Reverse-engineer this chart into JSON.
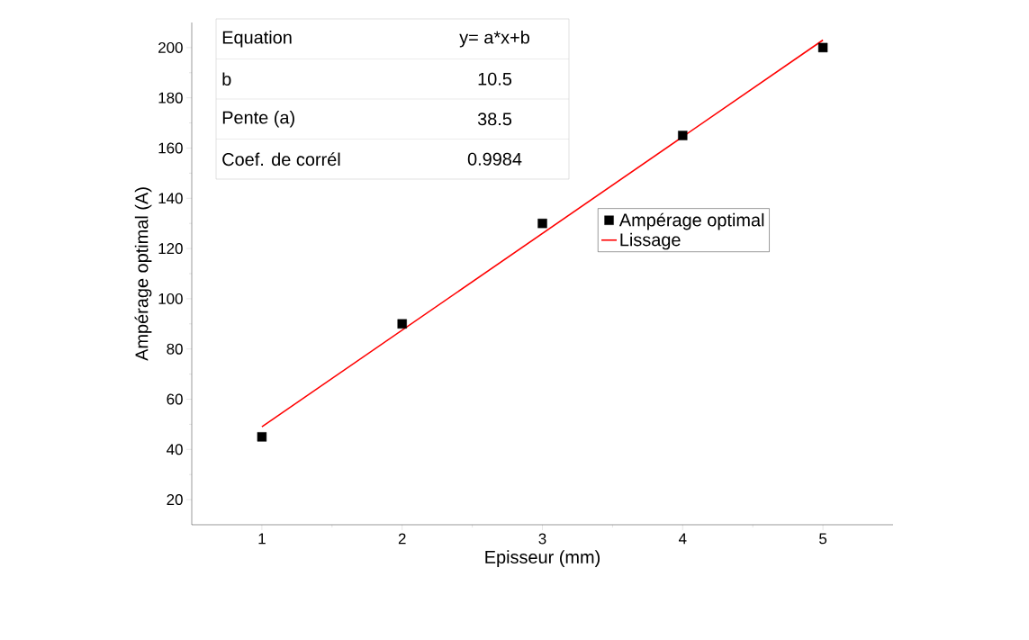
{
  "chart_data": {
    "type": "scatter",
    "xlabel": "Episseur (mm)",
    "ylabel": "Ampérage optimal (A)",
    "x": [
      1,
      2,
      3,
      4,
      5
    ],
    "series": [
      {
        "name": "Ampérage optimal",
        "color": "#000000",
        "marker": "square",
        "values": [
          45,
          90,
          130,
          165,
          200
        ]
      },
      {
        "name": "Lissage",
        "type": "line",
        "color": "#ff0000",
        "marker": "none",
        "x": [
          1,
          5
        ],
        "values": [
          49,
          203
        ]
      }
    ],
    "xlim": [
      0.5,
      5.5
    ],
    "xticks": [
      1,
      2,
      3,
      4,
      5
    ],
    "ylim": [
      10,
      210
    ],
    "yticks": [
      20,
      40,
      60,
      80,
      100,
      120,
      140,
      160,
      180,
      200
    ],
    "legend": "right",
    "grid": false,
    "annotations": [
      "Equation",
      "y= a*x+b",
      "b",
      "10.5",
      "Pente (a)",
      "38.5",
      "Coef. de corrél",
      "0.9984"
    ]
  }
}
